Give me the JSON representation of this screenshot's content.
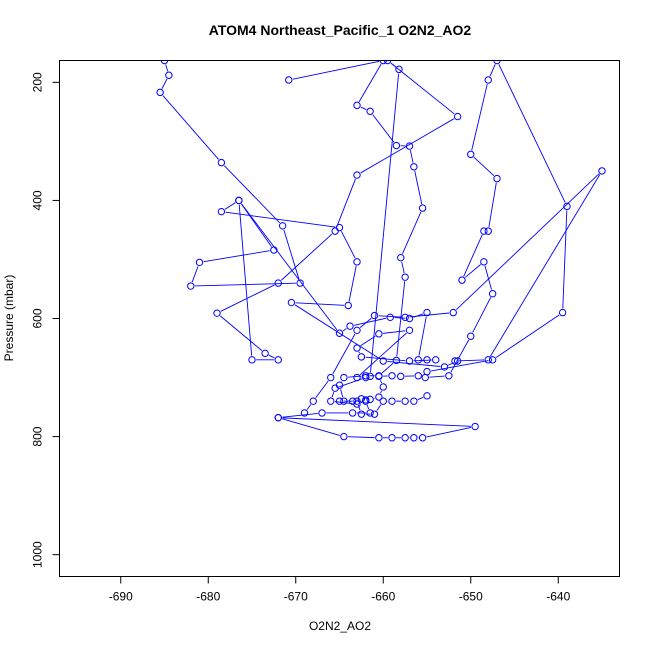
{
  "chart_data": {
    "type": "scatter",
    "title": "ATOM4 Northeast_Pacific_1 O2N2_AO2",
    "xlabel": "O2N2_AO2",
    "ylabel": "Pressure (mbar)",
    "xlim": [
      -697,
      -633
    ],
    "ylim": [
      1037,
      163
    ],
    "y_inverted": true,
    "x_ticks": [
      "-690",
      "-680",
      "-670",
      "-660",
      "-650",
      "-640"
    ],
    "y_ticks": [
      "200",
      "400",
      "600",
      "800",
      "1000"
    ],
    "grid": false,
    "marker": "open-circle",
    "series": [
      {
        "color": "#0000ff",
        "points": [
          [
            -685,
            163
          ],
          [
            -684.5,
            188
          ],
          [
            -685.5,
            217
          ],
          [
            -678.5,
            336
          ],
          [
            -671.5,
            443
          ],
          [
            -669.5,
            540
          ],
          [
            -682,
            545
          ],
          [
            -681,
            505
          ],
          [
            -672.5,
            484
          ],
          [
            -676.5,
            400
          ],
          [
            -678.5,
            419
          ],
          [
            -665,
            446
          ],
          [
            -663,
            504
          ],
          [
            -664,
            578
          ],
          [
            -670.5,
            573
          ],
          [
            -660,
            672
          ],
          [
            -653,
            682
          ],
          [
            -651.5,
            672
          ],
          [
            -651.8,
            672
          ],
          [
            -648,
            670
          ],
          [
            -635,
            350
          ],
          [
            -652,
            590
          ],
          [
            -657.5,
            598
          ],
          [
            -661,
            595
          ],
          [
            -663,
            620
          ],
          [
            -666,
            700
          ],
          [
            -668,
            740
          ],
          [
            -669,
            760
          ]
        ]
      },
      {
        "color": "#0000ff",
        "points": [
          [
            -670.8,
            196
          ],
          [
            -660,
            163
          ],
          [
            -663,
            239
          ],
          [
            -661.5,
            249
          ],
          [
            -658.5,
            307
          ],
          [
            -657,
            308
          ],
          [
            -656.5,
            343
          ],
          [
            -655.5,
            413
          ],
          [
            -658,
            497
          ],
          [
            -657.5,
            530
          ],
          [
            -658.5,
            671
          ],
          [
            -660.5,
            697
          ],
          [
            -662,
            697
          ],
          [
            -664.5,
            700
          ],
          [
            -665,
            713
          ],
          [
            -664.5,
            740
          ],
          [
            -663,
            740
          ],
          [
            -662.5,
            762
          ],
          [
            -661,
            762
          ],
          [
            -660,
            740
          ],
          [
            -659,
            740
          ],
          [
            -657.5,
            740
          ],
          [
            -656.5,
            740
          ],
          [
            -655,
            731
          ]
        ]
      },
      {
        "color": "#0000ff",
        "points": [
          [
            -665,
            740
          ],
          [
            -663.5,
            740
          ],
          [
            -662.5,
            736
          ],
          [
            -662,
            738
          ],
          [
            -661.5,
            737
          ],
          [
            -660.5,
            733
          ],
          [
            -660,
            716
          ],
          [
            -660.5,
            698
          ],
          [
            -659,
            697
          ],
          [
            -658,
            698
          ],
          [
            -656,
            697
          ],
          [
            -655.2,
            700
          ],
          [
            -652.5,
            697
          ],
          [
            -650,
            630
          ],
          [
            -647.5,
            558
          ],
          [
            -648.5,
            504
          ],
          [
            -651,
            535
          ],
          [
            -648.5,
            452
          ],
          [
            -648,
            452
          ],
          [
            -647,
            363
          ],
          [
            -650,
            322
          ],
          [
            -648,
            196
          ],
          [
            -647,
            163
          ],
          [
            -639,
            410
          ],
          [
            -639.5,
            590
          ],
          [
            -647.5,
            670
          ],
          [
            -655,
            690
          ]
        ]
      },
      {
        "color": "#0000ff",
        "points": [
          [
            -661.5,
            698
          ],
          [
            -658.2,
            178
          ],
          [
            -659.5,
            163
          ],
          [
            -651.5,
            258
          ],
          [
            -663,
            357
          ],
          [
            -665.5,
            452
          ],
          [
            -672,
            540
          ],
          [
            -679,
            591
          ],
          [
            -673.5,
            659
          ],
          [
            -672,
            670
          ],
          [
            -675,
            670
          ],
          [
            -676.5,
            400
          ],
          [
            -665,
            625
          ],
          [
            -663.8,
            613
          ],
          [
            -659.2,
            598
          ],
          [
            -657,
            600
          ],
          [
            -655,
            590
          ],
          [
            -656,
            670
          ],
          [
            -655,
            670
          ],
          [
            -654,
            670
          ],
          [
            -657,
            672
          ],
          [
            -662.5,
            665
          ],
          [
            -663,
            650
          ],
          [
            -660.5,
            626
          ],
          [
            -657,
            620
          ],
          [
            -663,
            700
          ],
          [
            -662,
            700
          ],
          [
            -665.5,
            718
          ],
          [
            -666,
            740
          ],
          [
            -663,
            745
          ],
          [
            -662,
            740
          ],
          [
            -661.5,
            760
          ],
          [
            -663.5,
            760
          ],
          [
            -667,
            760
          ],
          [
            -672,
            768
          ],
          [
            -664.5,
            800
          ],
          [
            -660.5,
            802
          ],
          [
            -659,
            802
          ],
          [
            -657.5,
            802
          ],
          [
            -656.5,
            802
          ],
          [
            -655.5,
            802
          ],
          [
            -649.5,
            783
          ],
          [
            -672,
            768
          ]
        ]
      }
    ]
  }
}
